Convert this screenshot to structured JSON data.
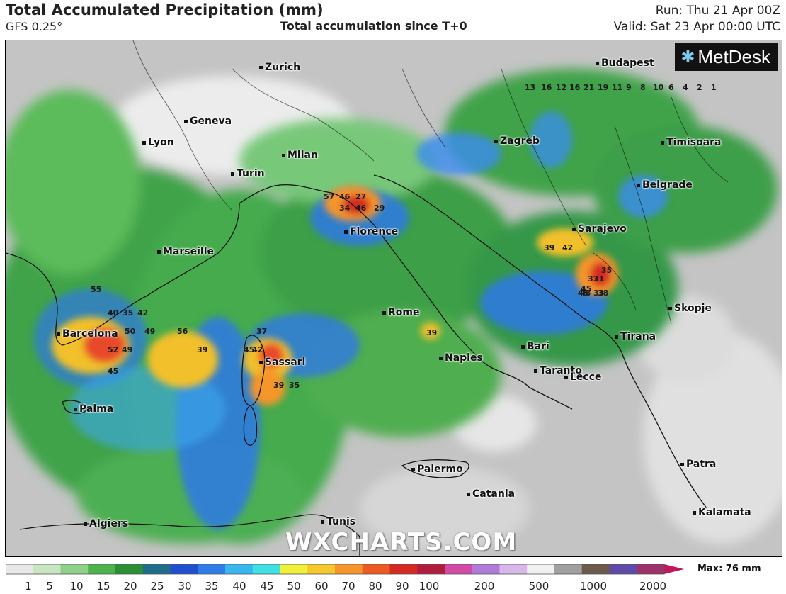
{
  "header": {
    "title": "Total Accumulated Precipitation (mm)",
    "model": "GFS 0.25°",
    "subtitle": "Total accumulation since T+0",
    "run": "Run: Thu 21 Apr 00Z",
    "valid": "Valid: Sat 23 Apr 00:00 UTC"
  },
  "branding": {
    "logo_text": "MetDesk",
    "logo_icon": "sun-icon",
    "watermark": "WXCHARTS.COM"
  },
  "cities": [
    {
      "name": "Zurich"
    },
    {
      "name": "Geneva"
    },
    {
      "name": "Lyon"
    },
    {
      "name": "Milan"
    },
    {
      "name": "Turin"
    },
    {
      "name": "Marseille"
    },
    {
      "name": "Florence"
    },
    {
      "name": "Rome"
    },
    {
      "name": "Barcelona"
    },
    {
      "name": "Sassari"
    },
    {
      "name": "Naples"
    },
    {
      "name": "Bari"
    },
    {
      "name": "Taranto"
    },
    {
      "name": "Lecce"
    },
    {
      "name": "Palma"
    },
    {
      "name": "Palermo"
    },
    {
      "name": "Catania"
    },
    {
      "name": "Tunis"
    },
    {
      "name": "Algiers"
    },
    {
      "name": "Budapest"
    },
    {
      "name": "Zagreb"
    },
    {
      "name": "Timisoara"
    },
    {
      "name": "Belgrade"
    },
    {
      "name": "Sarajevo"
    },
    {
      "name": "Skopje"
    },
    {
      "name": "Tirana"
    },
    {
      "name": "Patra"
    },
    {
      "name": "Kalamata"
    }
  ],
  "grid_values": [
    "57",
    "46",
    "27",
    "34",
    "46",
    "29",
    "55",
    "40",
    "35",
    "42",
    "50",
    "49",
    "56",
    "52",
    "49",
    "45",
    "39",
    "45",
    "42",
    "37",
    "39",
    "35",
    "39",
    "48",
    "33",
    "35",
    "31",
    "45",
    "38",
    "37",
    "45",
    "39",
    "42",
    "13",
    "16",
    "12",
    "16",
    "21",
    "19",
    "11",
    "9",
    "8",
    "10",
    "6",
    "4",
    "2",
    "1"
  ],
  "legend": {
    "max_label": "Max: 76 mm",
    "ticks": [
      "1",
      "5",
      "10",
      "15",
      "20",
      "25",
      "30",
      "35",
      "40",
      "45",
      "50",
      "60",
      "70",
      "80",
      "90",
      "100",
      "200",
      "500",
      "1000",
      "2000"
    ],
    "colors": [
      "#e8e8e8",
      "#c8e6c0",
      "#8fd18a",
      "#4cb24a",
      "#2a8f35",
      "#1f6d8a",
      "#1e4fcf",
      "#2e7bea",
      "#38b6ef",
      "#3fe0e6",
      "#f0f03a",
      "#f5c82d",
      "#f5952a",
      "#ee5a22",
      "#d42a22",
      "#b01c3c",
      "#d24aa6",
      "#b07ad8",
      "#d8b8ea",
      "#f0f0f0",
      "#a0a0a0",
      "#6c5a4a",
      "#5e4aa8",
      "#a0306a"
    ]
  }
}
